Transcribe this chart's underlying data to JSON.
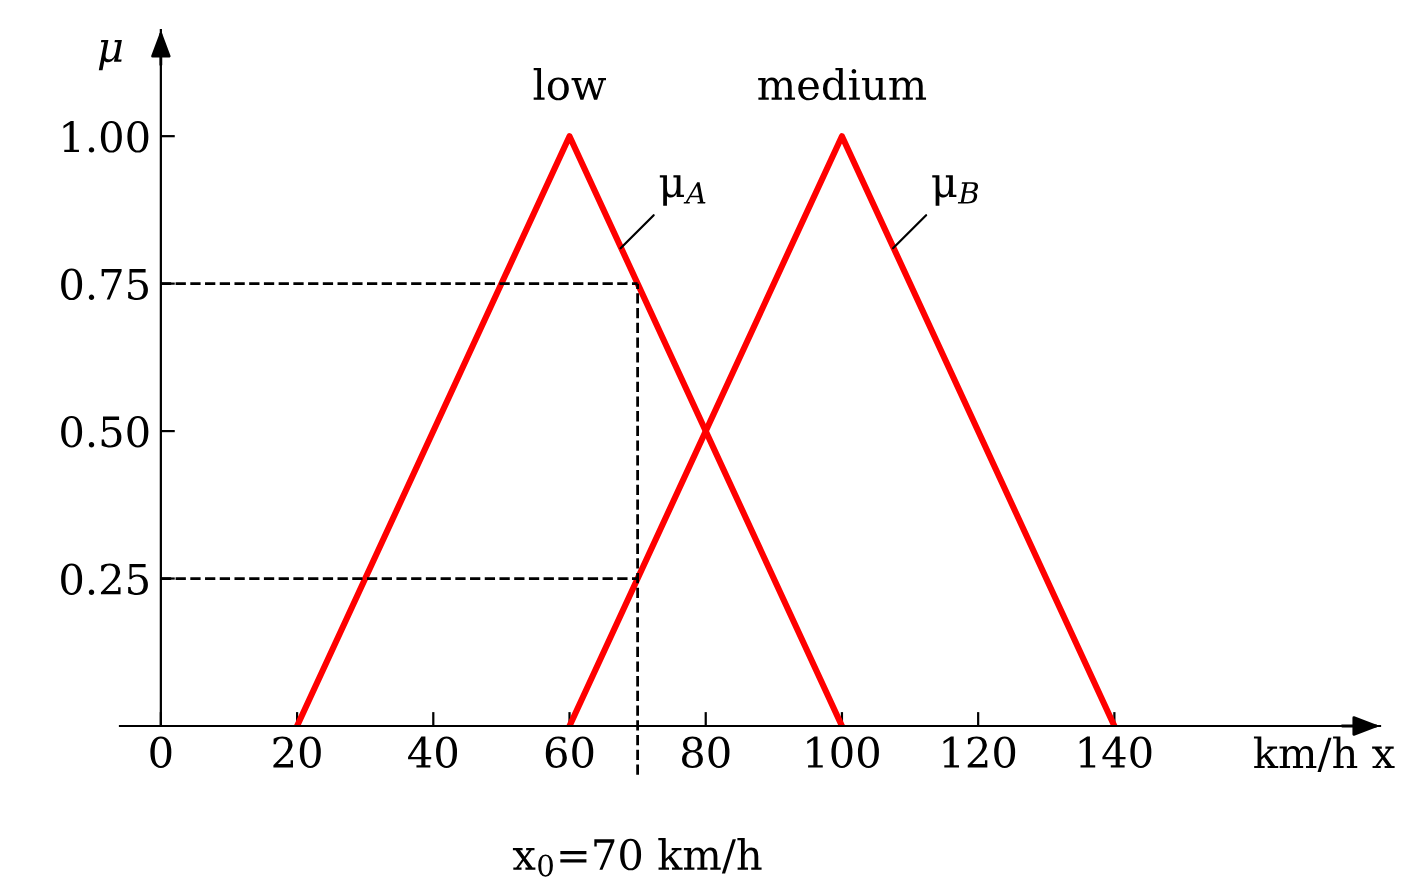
{
  "chart_data": {
    "type": "line",
    "ylabel": "μ",
    "xlabel": "km/h x",
    "series": [
      {
        "name": "low",
        "color": "#ff0000",
        "x": [
          20,
          60,
          100
        ],
        "values": [
          0,
          1,
          0
        ]
      },
      {
        "name": "medium",
        "color": "#ff0000",
        "x": [
          60,
          100,
          140
        ],
        "values": [
          0,
          1,
          0
        ]
      }
    ],
    "xlim": [
      -6,
      179
    ],
    "ylim": [
      0,
      1.18
    ],
    "xticks": [
      0,
      20,
      40,
      60,
      80,
      100,
      120,
      140
    ],
    "yticks": [
      {
        "value": 0.25,
        "label": "0.25"
      },
      {
        "value": 0.5,
        "label": "0.50"
      },
      {
        "value": 0.75,
        "label": "0.75"
      },
      {
        "value": 1.0,
        "label": "1.00"
      }
    ],
    "ref_lines": [
      {
        "axis": "x",
        "value": 70,
        "label": "x$_{0}$=70 km/h",
        "color": "#000000",
        "line_style": "dashed"
      },
      {
        "axis": "y",
        "value": 0.75,
        "color": "#000000",
        "line_style": "dashed"
      },
      {
        "axis": "y",
        "value": 0.25,
        "color": "#000000",
        "line_style": "dashed"
      }
    ],
    "annotations": [
      {
        "text": "μ$_{A}$",
        "x": 67.5,
        "y": 0.81
      },
      {
        "text": "μ$_{B}$",
        "x": 107.5,
        "y": 0.81
      }
    ],
    "grid": false,
    "legend": false,
    "marker": "none",
    "line_style": "solid"
  }
}
